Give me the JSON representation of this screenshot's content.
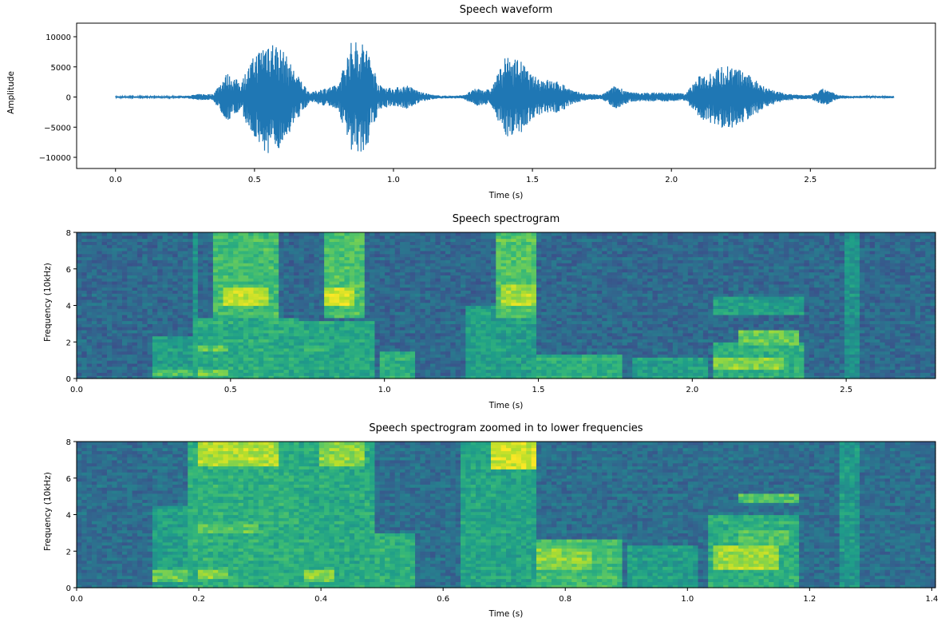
{
  "chart_data": [
    {
      "type": "line",
      "title": "Speech waveform",
      "xlabel": "Time (s)",
      "ylabel": "Amplitude",
      "xlim": [
        -0.14,
        2.95
      ],
      "ylim": [
        -11850,
        12250
      ],
      "grid": false,
      "xticks": [
        0.0,
        0.5,
        1.0,
        1.5,
        2.0,
        2.5
      ],
      "xtick_labels": [
        "0.0",
        "0.5",
        "1.0",
        "1.5",
        "2.0",
        "2.5"
      ],
      "yticks": [
        -10000,
        -5000,
        0,
        5000,
        10000
      ],
      "ytick_labels": [
        "−10000",
        "−5000",
        "0",
        "5000",
        "10000"
      ],
      "color": "#1f77b4",
      "envelope_step_s": 0.05,
      "envelope_peak_amplitude": [
        150,
        150,
        150,
        150,
        150,
        200,
        500,
        500,
        4000,
        2500,
        7000,
        10000,
        8000,
        4000,
        700,
        1500,
        2000,
        9500,
        9000,
        2000,
        1500,
        2000,
        800,
        300,
        200,
        300,
        1500,
        1200,
        6500,
        6500,
        3500,
        3000,
        2500,
        1000,
        500,
        400,
        2000,
        800,
        700,
        800,
        700,
        600,
        3500,
        4500,
        5500,
        4500,
        3000,
        1500,
        700,
        400,
        300,
        1500,
        300,
        200,
        200,
        200,
        200
      ]
    },
    {
      "type": "heatmap",
      "title": "Speech spectrogram",
      "xlabel": "Time (s)",
      "ylabel": "Frequency (10kHz)",
      "xlim": [
        0,
        2.79
      ],
      "ylim": [
        0,
        8
      ],
      "colormap": "viridis",
      "xticks": [
        0.0,
        0.5,
        1.0,
        1.5,
        2.0,
        2.5
      ],
      "xtick_labels": [
        "0.0",
        "0.5",
        "1.0",
        "1.5",
        "2.0",
        "2.5"
      ],
      "yticks": [
        0,
        2,
        4,
        6,
        8
      ],
      "ytick_labels": [
        "0",
        "2",
        "4",
        "6",
        "8"
      ],
      "background_level": 0.33,
      "regions": [
        {
          "t": [
            0.25,
            0.37
          ],
          "f": [
            0,
            2.3
          ],
          "level": 0.55
        },
        {
          "t": [
            0.25,
            0.37
          ],
          "f": [
            0.1,
            0.5
          ],
          "level": 0.72
        },
        {
          "t": [
            0.37,
            0.72
          ],
          "f": [
            0,
            3.3
          ],
          "level": 0.6
        },
        {
          "t": [
            0.37,
            0.4
          ],
          "f": [
            0,
            8
          ],
          "level": 0.5
        },
        {
          "t": [
            0.4,
            0.5
          ],
          "f": [
            0.2,
            0.5
          ],
          "level": 0.78
        },
        {
          "t": [
            0.4,
            0.5
          ],
          "f": [
            1.5,
            1.9
          ],
          "level": 0.75
        },
        {
          "t": [
            0.45,
            0.66
          ],
          "f": [
            3.4,
            8
          ],
          "level": 0.68
        },
        {
          "t": [
            0.48,
            0.62
          ],
          "f": [
            4,
            5
          ],
          "level": 0.9
        },
        {
          "t": [
            0.72,
            0.97
          ],
          "f": [
            0,
            3.2
          ],
          "level": 0.58
        },
        {
          "t": [
            0.74,
            0.82
          ],
          "f": [
            1.5,
            1.8
          ],
          "level": 0.72
        },
        {
          "t": [
            0.8,
            0.94
          ],
          "f": [
            3.4,
            8
          ],
          "level": 0.7
        },
        {
          "t": [
            0.8,
            0.9
          ],
          "f": [
            4,
            5
          ],
          "level": 0.92
        },
        {
          "t": [
            0.98,
            1.1
          ],
          "f": [
            0,
            1.5
          ],
          "level": 0.62
        },
        {
          "t": [
            1.26,
            1.5
          ],
          "f": [
            0,
            4
          ],
          "level": 0.55
        },
        {
          "t": [
            1.37,
            1.5
          ],
          "f": [
            3.4,
            8
          ],
          "level": 0.72
        },
        {
          "t": [
            1.38,
            1.5
          ],
          "f": [
            4,
            5.2
          ],
          "level": 0.86
        },
        {
          "t": [
            1.5,
            1.78
          ],
          "f": [
            0,
            1.3
          ],
          "level": 0.62
        },
        {
          "t": [
            1.8,
            2.05
          ],
          "f": [
            0,
            1.2
          ],
          "level": 0.55
        },
        {
          "t": [
            2.07,
            2.37
          ],
          "f": [
            0,
            2
          ],
          "level": 0.62
        },
        {
          "t": [
            2.07,
            2.3
          ],
          "f": [
            0.5,
            1.2
          ],
          "level": 0.8
        },
        {
          "t": [
            2.15,
            2.35
          ],
          "f": [
            1.9,
            2.6
          ],
          "level": 0.75
        },
        {
          "t": [
            2.07,
            2.37
          ],
          "f": [
            3.5,
            4.5
          ],
          "level": 0.55
        },
        {
          "t": [
            2.5,
            2.55
          ],
          "f": [
            0,
            8
          ],
          "level": 0.5
        }
      ]
    },
    {
      "type": "heatmap",
      "title": "Speech spectrogram zoomed in to lower frequencies",
      "xlabel": "Time (s)",
      "ylabel": "Frequency (10kHz)",
      "xlim": [
        0,
        1.406
      ],
      "ylim": [
        0,
        8
      ],
      "colormap": "viridis",
      "xticks": [
        0.0,
        0.2,
        0.4,
        0.6,
        0.8,
        1.0,
        1.2,
        1.4
      ],
      "xtick_labels": [
        "0.0",
        "0.2",
        "0.4",
        "0.6",
        "0.8",
        "1.0",
        "1.2",
        "1.4"
      ],
      "yticks": [
        0,
        2,
        4,
        6,
        8
      ],
      "ytick_labels": [
        "0",
        "2",
        "4",
        "6",
        "8"
      ],
      "background_level": 0.35,
      "regions": [
        {
          "t": [
            0.125,
            0.185
          ],
          "f": [
            0,
            4.5
          ],
          "level": 0.55
        },
        {
          "t": [
            0.125,
            0.185
          ],
          "f": [
            0.3,
            1
          ],
          "level": 0.75
        },
        {
          "t": [
            0.185,
            0.36
          ],
          "f": [
            0,
            8
          ],
          "level": 0.62
        },
        {
          "t": [
            0.2,
            0.33
          ],
          "f": [
            6.6,
            8
          ],
          "level": 0.88
        },
        {
          "t": [
            0.2,
            0.25
          ],
          "f": [
            0.5,
            1
          ],
          "level": 0.8
        },
        {
          "t": [
            0.2,
            0.3
          ],
          "f": [
            3,
            3.5
          ],
          "level": 0.75
        },
        {
          "t": [
            0.36,
            0.485
          ],
          "f": [
            0,
            8
          ],
          "level": 0.6
        },
        {
          "t": [
            0.4,
            0.47
          ],
          "f": [
            6.6,
            8
          ],
          "level": 0.82
        },
        {
          "t": [
            0.37,
            0.42
          ],
          "f": [
            0.4,
            1
          ],
          "level": 0.8
        },
        {
          "t": [
            0.49,
            0.55
          ],
          "f": [
            0,
            3
          ],
          "level": 0.62
        },
        {
          "t": [
            0.63,
            0.75
          ],
          "f": [
            0,
            8
          ],
          "level": 0.57
        },
        {
          "t": [
            0.68,
            0.75
          ],
          "f": [
            6.5,
            8
          ],
          "level": 0.92
        },
        {
          "t": [
            0.75,
            0.89
          ],
          "f": [
            0,
            2.6
          ],
          "level": 0.68
        },
        {
          "t": [
            0.75,
            0.84
          ],
          "f": [
            1,
            2.2
          ],
          "level": 0.8
        },
        {
          "t": [
            0.9,
            1.02
          ],
          "f": [
            0,
            2.4
          ],
          "level": 0.55
        },
        {
          "t": [
            1.03,
            1.18
          ],
          "f": [
            0,
            4
          ],
          "level": 0.62
        },
        {
          "t": [
            1.04,
            1.15
          ],
          "f": [
            1,
            2.4
          ],
          "level": 0.85
        },
        {
          "t": [
            1.08,
            1.17
          ],
          "f": [
            2.4,
            3.2
          ],
          "level": 0.72
        },
        {
          "t": [
            1.08,
            1.18
          ],
          "f": [
            4.6,
            5.2
          ],
          "level": 0.72
        },
        {
          "t": [
            1.25,
            1.28
          ],
          "f": [
            0,
            8
          ],
          "level": 0.52
        }
      ]
    }
  ]
}
